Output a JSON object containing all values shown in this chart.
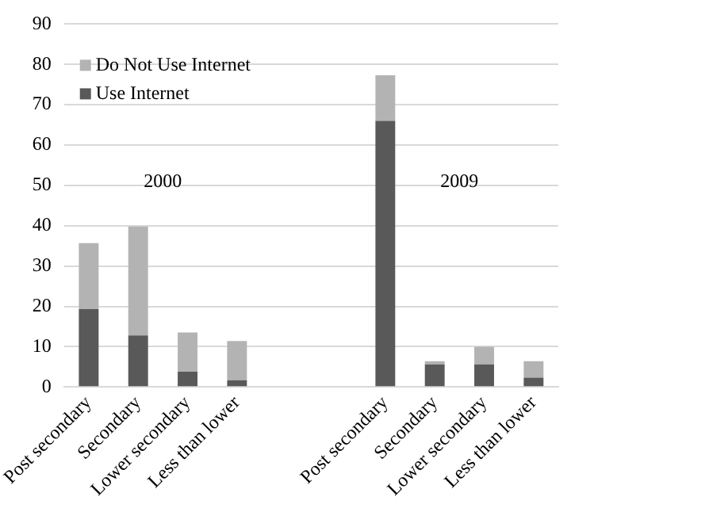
{
  "chart_data": {
    "type": "bar",
    "stacked": true,
    "categories": [
      "Post secondary",
      "Secondary",
      "Lower secondary",
      "Less than lower",
      null,
      null,
      "Post secondary",
      "Secondary",
      "Lower secondary",
      "Less than lower"
    ],
    "series": [
      {
        "name": "Use Internet",
        "color": "#595959",
        "values": [
          19.3,
          12.8,
          3.8,
          1.7,
          null,
          null,
          66,
          5.6,
          5.6,
          2.3
        ]
      },
      {
        "name": "Do Not Use Internet",
        "color": "#b3b3b3",
        "values": [
          16.4,
          27,
          9.7,
          9.7,
          null,
          null,
          11.3,
          0.8,
          4.4,
          4.1
        ]
      }
    ],
    "ylim": [
      0,
      90
    ],
    "yticks": [
      0,
      10,
      20,
      30,
      40,
      50,
      60,
      70,
      80,
      90
    ],
    "grid": "y",
    "legend": "top left",
    "annotations": [
      "2000",
      "2009"
    ]
  }
}
